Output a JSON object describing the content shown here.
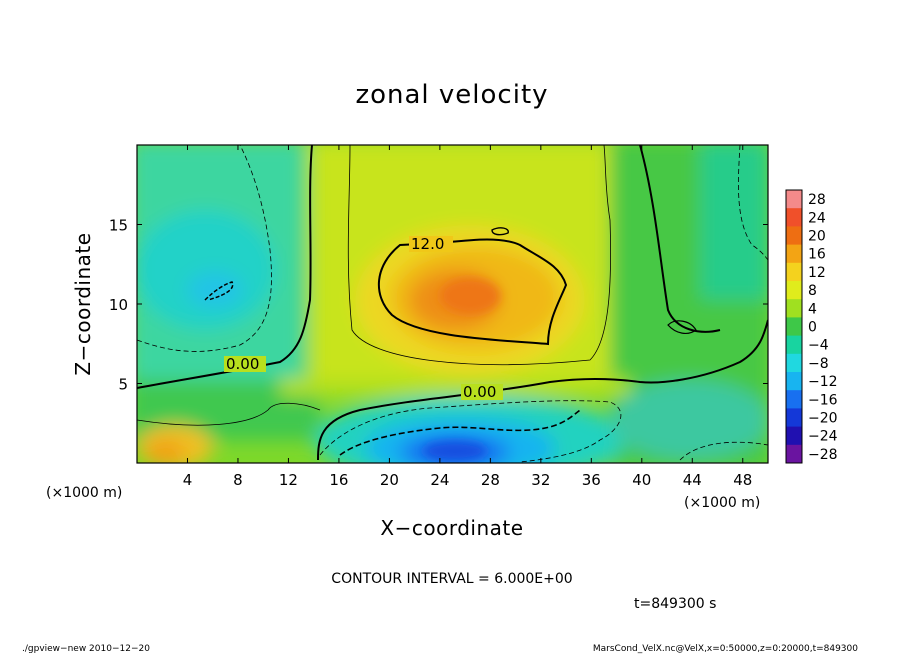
{
  "chart_data": {
    "type": "heatmap",
    "title": "zonal velocity",
    "xlabel": "X−coordinate",
    "ylabel": "Z−coordinate",
    "x_unit_left": "(×1000 m)",
    "x_unit_right": "(×1000 m)",
    "xlim": [
      0,
      50
    ],
    "ylim": [
      0,
      20
    ],
    "x_ticks": [
      4,
      8,
      12,
      16,
      20,
      24,
      28,
      32,
      36,
      40,
      44,
      48
    ],
    "y_ticks": [
      5,
      10,
      15
    ],
    "colorbar": {
      "levels": [
        28,
        24,
        20,
        16,
        12,
        8,
        4,
        0,
        -4,
        -8,
        -12,
        -16,
        -20,
        -24,
        -28
      ],
      "labels": [
        "28",
        "24",
        "20",
        "16",
        "12",
        "8",
        "4",
        "0",
        "−4",
        "−8",
        "−12",
        "−16",
        "−20",
        "−24",
        "−28"
      ],
      "colors": [
        "#f48a8a",
        "#f0502a",
        "#ee6e12",
        "#f3a414",
        "#f4d21e",
        "#e0ec1c",
        "#a0e020",
        "#3ec848",
        "#18d4a0",
        "#20d8e0",
        "#18b4f0",
        "#1870f0",
        "#1438d8",
        "#2010b0",
        "#6a14a0"
      ]
    },
    "contour_labels": [
      "12.0",
      "0.00",
      "0.00"
    ],
    "contour_interval": "CONTOUR INTERVAL = 6.000E+00",
    "time_label": "t=849300 s",
    "features": [
      {
        "label": "positive jet core",
        "x": 25,
        "z": 10.5,
        "value": 17
      },
      {
        "label": "negative core",
        "x": 26,
        "z": 1.5,
        "value": -16
      },
      {
        "label": "negative patch",
        "x": 6,
        "z": 11.5,
        "value": -8
      },
      {
        "label": "positive surface patch",
        "x": 3,
        "z": 1,
        "value": 14
      }
    ]
  },
  "footer": {
    "left": "./gpview−new  2010−12−20",
    "right": "MarsCond_VelX.nc@VelX,x=0:50000,z=0:20000,t=849300"
  }
}
